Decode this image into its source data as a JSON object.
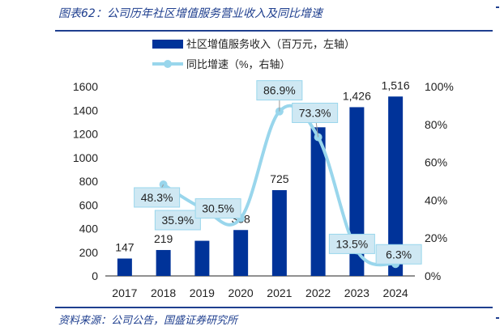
{
  "figure": {
    "title": "图表62：公司历年社区增值服务营业收入及同比增速",
    "source": "资料来源：公司公告，国盛证券研究所"
  },
  "colors": {
    "bar": "#003399",
    "line": "#99d6ec",
    "label_box": "#cfe8f3",
    "accent": "#1f3f8f"
  },
  "chart_data": {
    "type": "bar",
    "categories": [
      "2017",
      "2018",
      "2019",
      "2020",
      "2021",
      "2022",
      "2023",
      "2024"
    ],
    "series": [
      {
        "name": "社区增值服务收入（百万元，左轴）",
        "type": "bar",
        "axis": "left",
        "values": [
          147,
          219,
          297,
          388,
          725,
          1256,
          1426,
          1516
        ],
        "labels": [
          "147",
          "219",
          "",
          "388",
          "725",
          "",
          "1,426",
          "1,516"
        ]
      },
      {
        "name": "同比增速（%，右轴）",
        "type": "line",
        "axis": "right",
        "values": [
          null,
          48.3,
          35.9,
          30.5,
          86.9,
          73.3,
          13.5,
          6.3
        ],
        "labels": [
          "",
          "48.3%",
          "35.9%",
          "30.5%",
          "86.9%",
          "73.3%",
          "13.5%",
          "6.3%"
        ]
      }
    ],
    "y_left": {
      "min": 0,
      "max": 1600,
      "ticks": [
        0,
        200,
        400,
        600,
        800,
        1000,
        1200,
        1400,
        1600
      ]
    },
    "y_right": {
      "min": 0,
      "max": 100,
      "ticks": [
        "0%",
        "20%",
        "40%",
        "60%",
        "80%",
        "100%"
      ]
    },
    "legend_position": "top-right",
    "grid": false
  }
}
